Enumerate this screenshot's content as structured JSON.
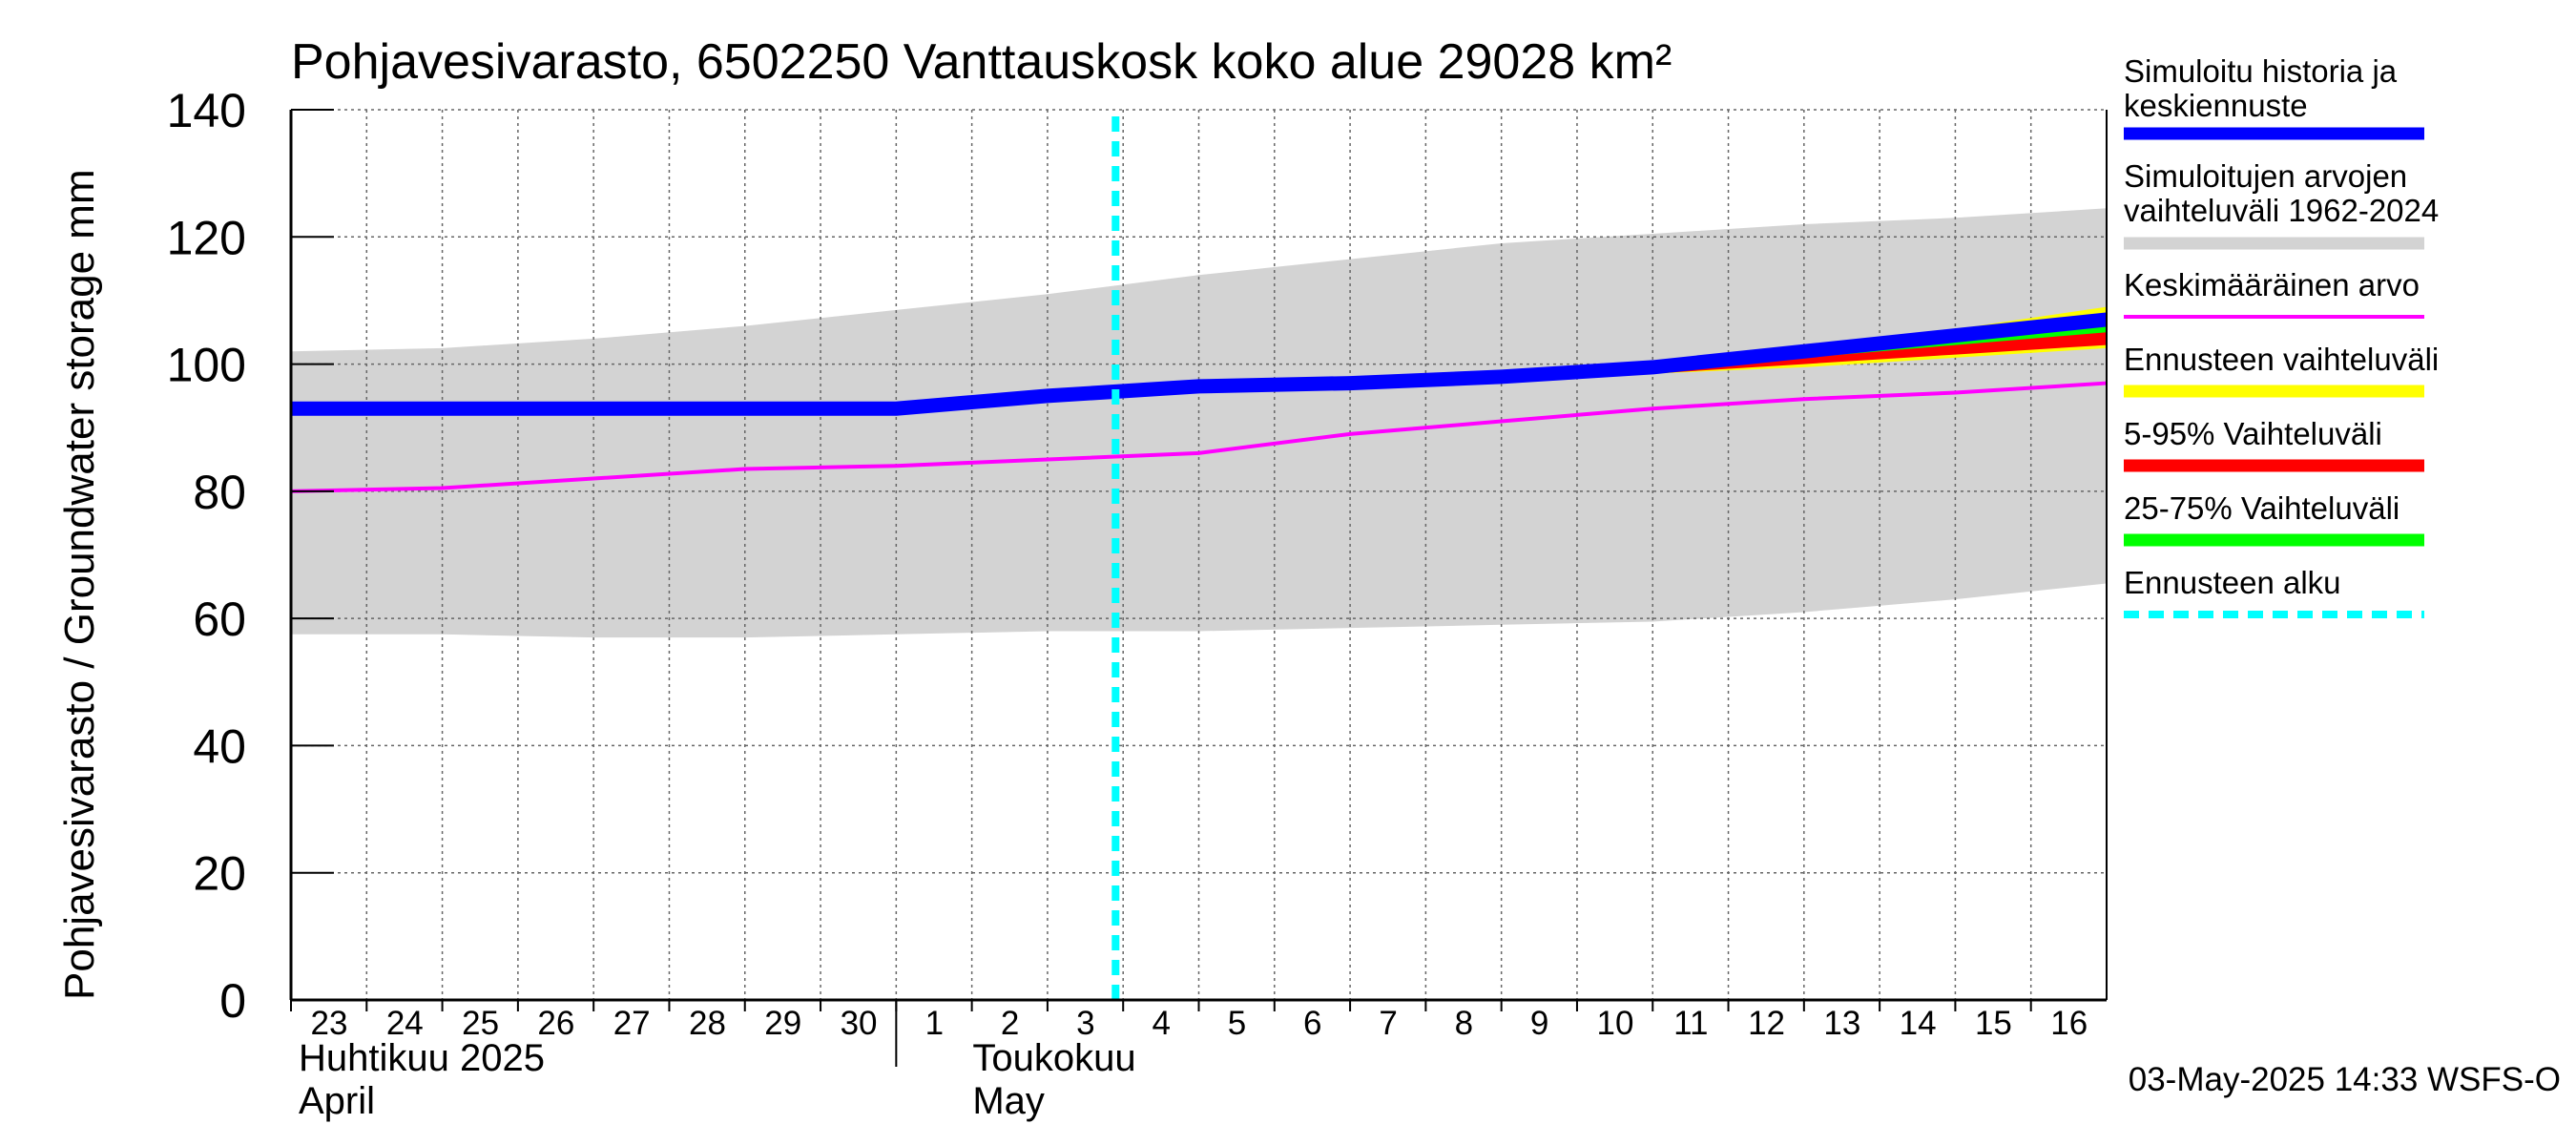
{
  "chart_data": {
    "type": "line",
    "title": "Pohjavesivarasto, 6502250 Vanttauskosk koko alue 29028 km²",
    "ylabel": "Pohjavesivarasto / Groundwater storage   mm",
    "ylim": [
      0,
      140
    ],
    "yticks": [
      0,
      20,
      40,
      60,
      80,
      100,
      120,
      140
    ],
    "xlim": [
      23,
      47
    ],
    "xtick_labels": [
      "23",
      "24",
      "25",
      "26",
      "27",
      "28",
      "29",
      "30",
      "1",
      "2",
      "3",
      "4",
      "5",
      "6",
      "7",
      "8",
      "9",
      "10",
      "11",
      "12",
      "13",
      "14",
      "15",
      "16"
    ],
    "month_labels": [
      {
        "fi": "Huhtikuu  2025",
        "en": "April"
      },
      {
        "fi": "Toukokuu",
        "en": "May"
      }
    ],
    "forecast_start": 33.9,
    "grid": true,
    "legend_position": "right",
    "colors": {
      "history": "#0000ff",
      "range": "#d3d3d3",
      "mean": "#ff00ff",
      "forecast_range": "#ffff00",
      "p5_95": "#ff0000",
      "p25_75": "#00ff00",
      "forecast_start": "#00ffff"
    },
    "series": [
      {
        "name": "Simuloitujen arvojen vaihteluväli 1962-2024",
        "kind": "band",
        "x": [
          23,
          25,
          27,
          29,
          31,
          33,
          35,
          37,
          39,
          41,
          43,
          45,
          47
        ],
        "low": [
          57.5,
          57.5,
          57,
          57,
          57.5,
          58,
          58,
          58.5,
          59,
          59.5,
          61,
          63,
          65.5
        ],
        "high": [
          102,
          102.5,
          104,
          106,
          108.5,
          111,
          114,
          116.5,
          119,
          120.5,
          122,
          123,
          124.5
        ]
      },
      {
        "name": "Ennusteen vaihteluväli",
        "kind": "band",
        "x": [
          39,
          41,
          43,
          45,
          47
        ],
        "low": [
          98,
          98.5,
          99.5,
          101,
          102.5
        ],
        "high": [
          98,
          99.5,
          102.5,
          105.5,
          109
        ]
      },
      {
        "name": "5-95% Vaihteluväli",
        "kind": "band",
        "x": [
          39,
          41,
          43,
          45,
          47
        ],
        "low": [
          98,
          98.5,
          100,
          101.5,
          103
        ],
        "high": [
          98,
          99.5,
          102.5,
          105,
          108
        ]
      },
      {
        "name": "25-75% Vaihteluväli",
        "kind": "band",
        "x": [
          39,
          41,
          43,
          45,
          47
        ],
        "low": [
          98,
          99,
          101,
          103,
          105
        ],
        "high": [
          98,
          99.5,
          102,
          104.5,
          107
        ]
      },
      {
        "name": "Simuloitu historia ja keskiennuste",
        "kind": "line",
        "x": [
          23,
          25,
          27,
          29,
          31,
          33,
          35,
          37,
          39,
          41,
          43,
          45,
          47
        ],
        "y": [
          93,
          93,
          93,
          93,
          93,
          95,
          96.5,
          97,
          98,
          99.5,
          102,
          104.5,
          107
        ]
      },
      {
        "name": "Keskimääräinen arvo",
        "kind": "line",
        "x": [
          23,
          25,
          27,
          29,
          31,
          33,
          35,
          37,
          39,
          41,
          43,
          45,
          47
        ],
        "y": [
          80,
          80.5,
          82,
          83.5,
          84,
          85,
          86,
          89,
          91,
          93,
          94.5,
          95.5,
          97
        ]
      }
    ],
    "legend": [
      {
        "label": "Simuloitu historia ja keskiennuste",
        "color": "#0000ff",
        "style": "thick"
      },
      {
        "label": "Simuloitujen arvojen vaihteluväli 1962-2024",
        "color": "#d3d3d3",
        "style": "thick"
      },
      {
        "label": "Keskimääräinen arvo",
        "color": "#ff00ff",
        "style": "thin"
      },
      {
        "label": "Ennusteen vaihteluväli",
        "color": "#ffff00",
        "style": "thick"
      },
      {
        "label": "5-95% Vaihteluväli",
        "color": "#ff0000",
        "style": "thick"
      },
      {
        "label": "25-75% Vaihteluväli",
        "color": "#00ff00",
        "style": "thick"
      },
      {
        "label": "Ennusteen alku",
        "color": "#00ffff",
        "style": "dashed"
      }
    ],
    "footer": "03-May-2025 14:33 WSFS-O"
  }
}
